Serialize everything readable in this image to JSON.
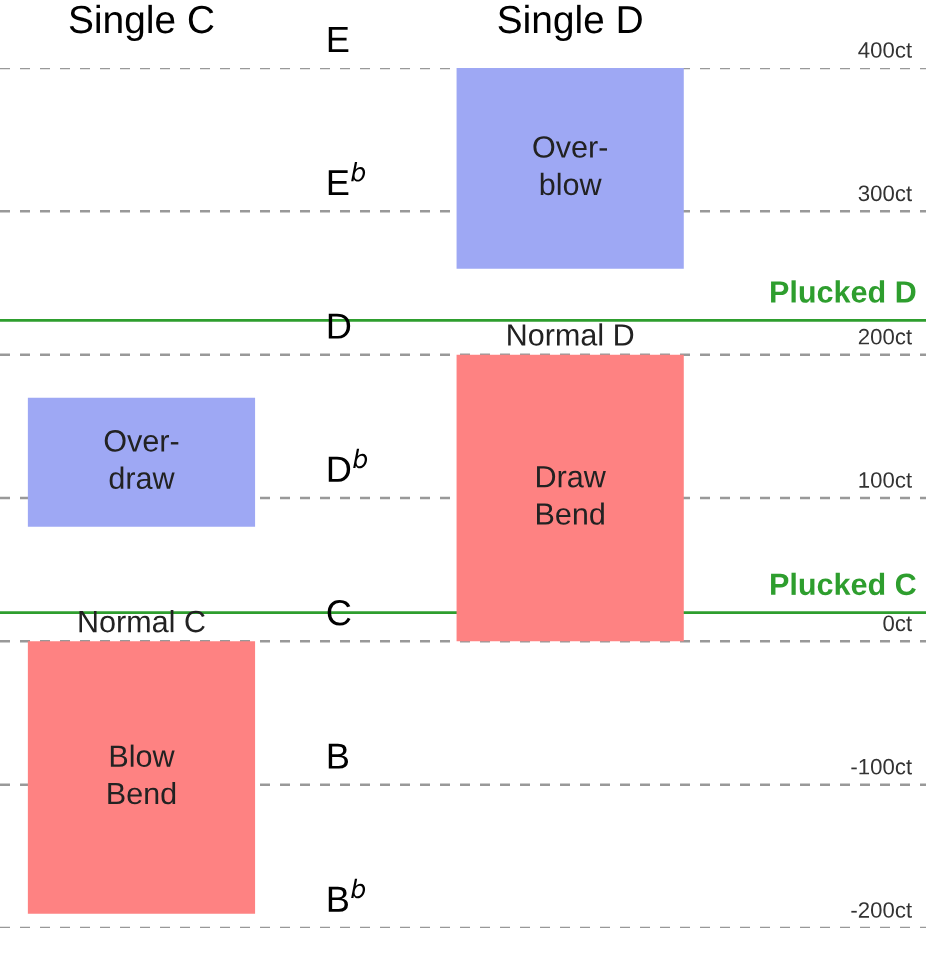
{
  "chart_data": {
    "type": "bar",
    "categories": [
      "Single C",
      "Single D"
    ],
    "series": [
      {
        "color": "#fe8282",
        "values": [
          -190,
          200
        ],
        "base": [
          0,
          0
        ],
        "value_labels": [
          "Blow\nBend",
          "Draw\nBend"
        ]
      },
      {
        "color": "#9ea8f4",
        "values": [
          90,
          140
        ],
        "base": [
          80,
          260
        ],
        "value_labels": [
          "Over-\ndraw",
          "Over-\nblow"
        ]
      }
    ],
    "ylim": [
      -200,
      400
    ],
    "yticks": [
      {
        "value": 400,
        "label": "400ct"
      },
      {
        "value": 300,
        "label": "300ct"
      },
      {
        "value": 200,
        "label": "200ct"
      },
      {
        "value": 100,
        "label": "100ct"
      },
      {
        "value": 0,
        "label": "0ct"
      },
      {
        "value": -100,
        "label": "-100ct"
      },
      {
        "value": -200,
        "label": "-200ct"
      }
    ],
    "grid": "y",
    "ref_lines": [
      {
        "axis": "y",
        "value": 224,
        "label": "Plucked D",
        "color": "#2e9e2e"
      },
      {
        "axis": "y",
        "value": 20,
        "label": "Plucked C",
        "color": "#2e9e2e"
      }
    ],
    "annotations": [
      "E",
      "E$^{b}$",
      "D",
      "D$^{b}$",
      "C",
      "B",
      "B$^{b}$",
      {
        "text": "Normal C",
        "x": "Single C",
        "y": 0
      },
      {
        "text": "Normal D",
        "x": "Single D",
        "y": 200
      }
    ]
  }
}
